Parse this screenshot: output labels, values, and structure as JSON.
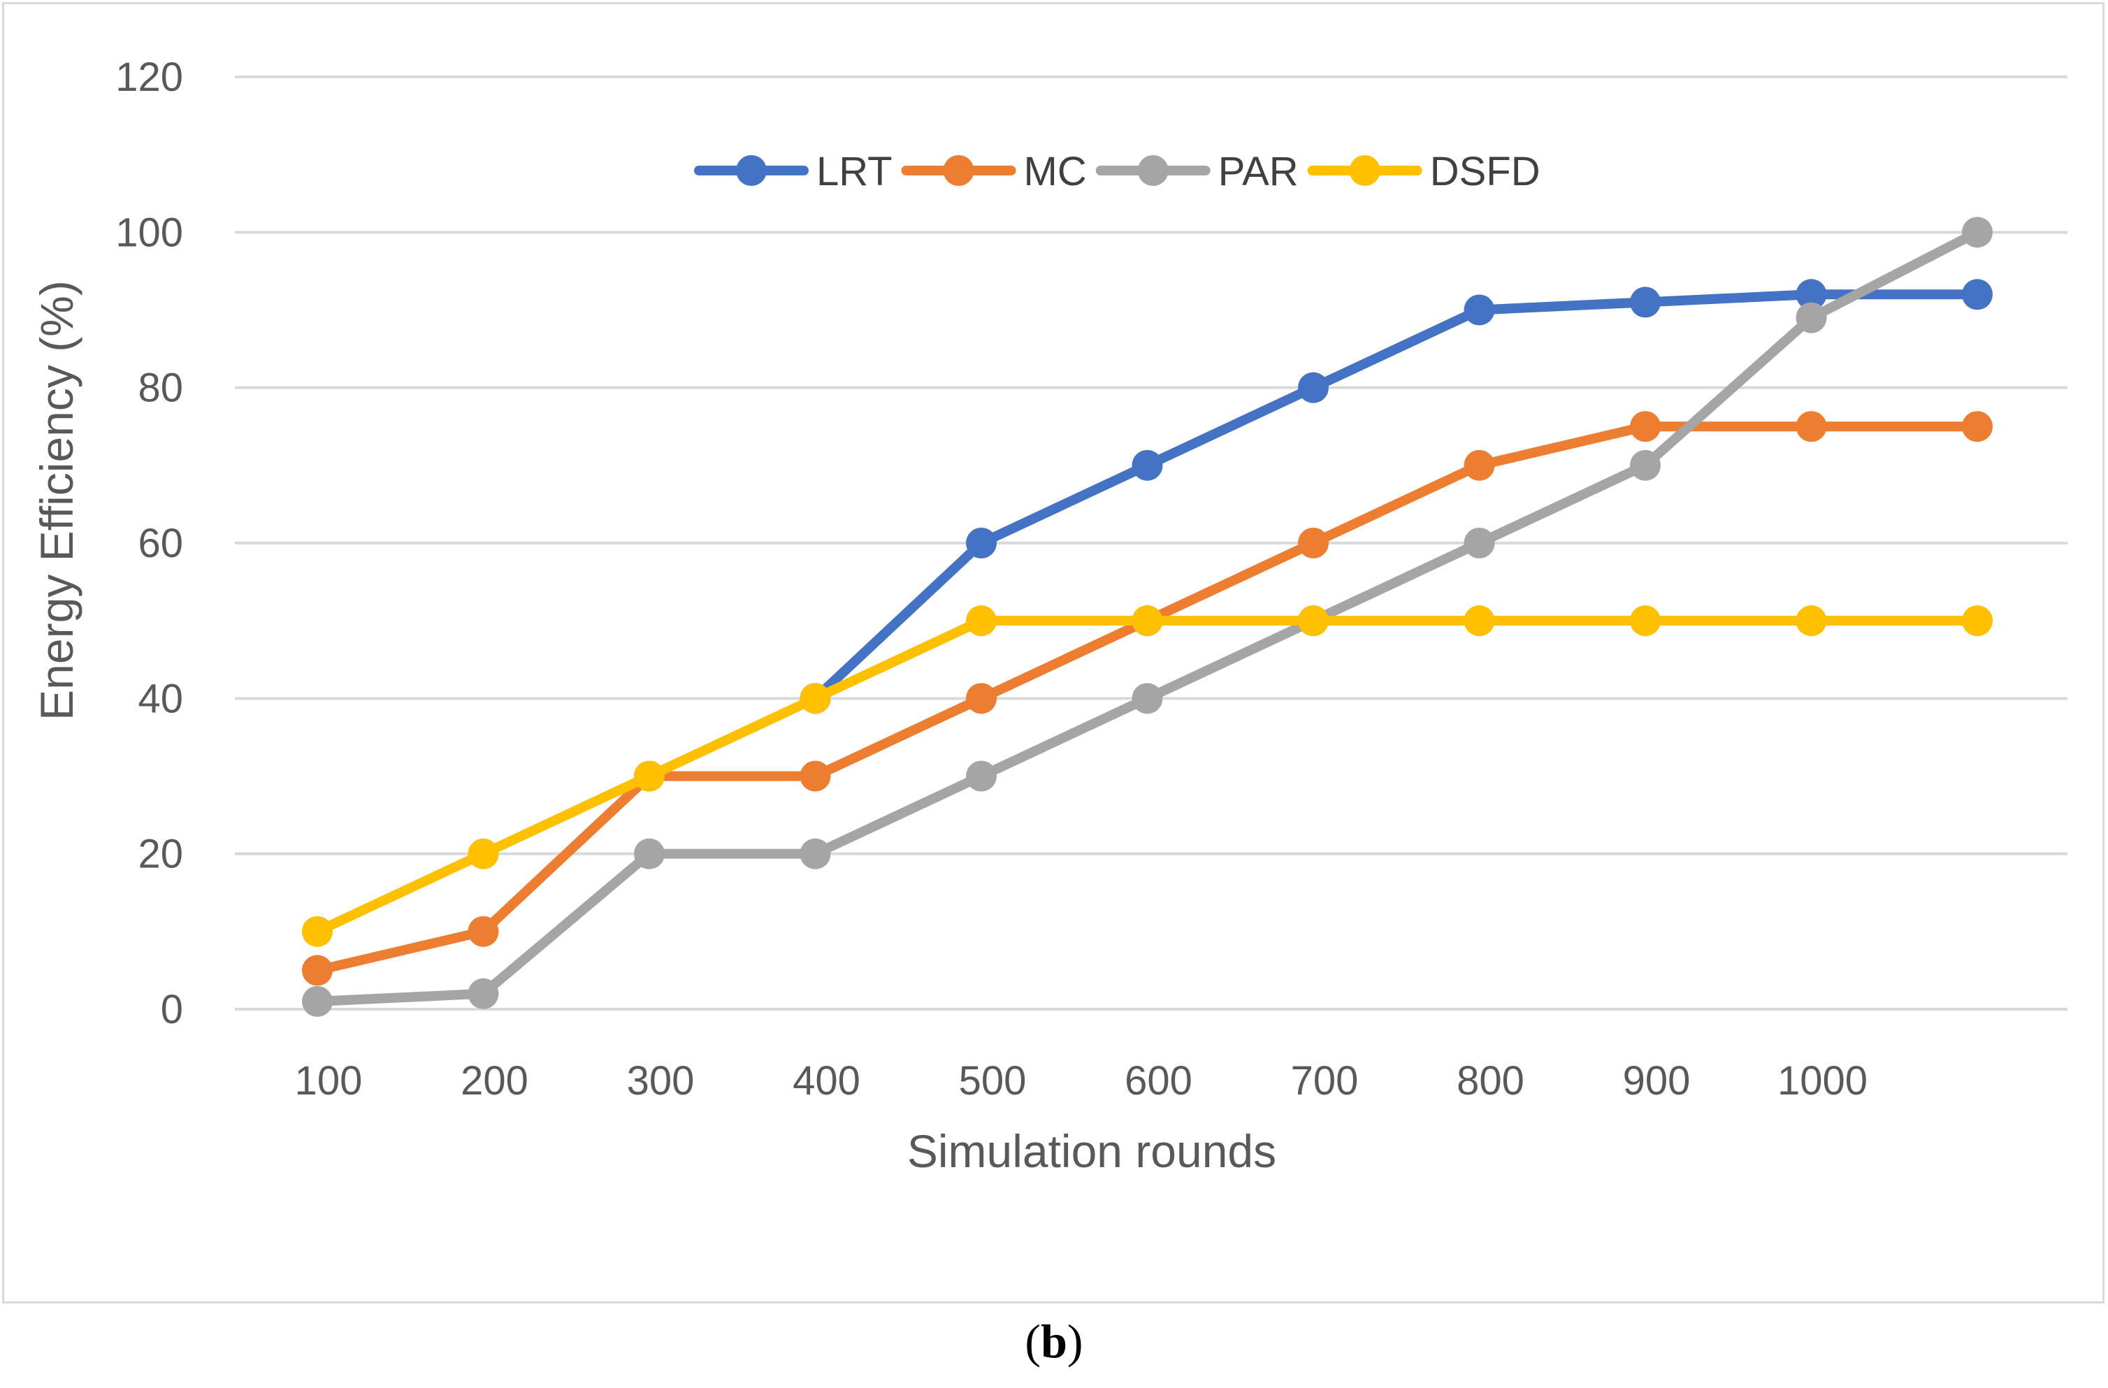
{
  "chart_data": {
    "type": "line",
    "title": "",
    "xlabel": "Simulation rounds",
    "ylabel": "Energy Efficiency (%)",
    "categories": [
      "100",
      "200",
      "300",
      "400",
      "500",
      "600",
      "700",
      "800",
      "900",
      "1000",
      ""
    ],
    "ylim": [
      0,
      120
    ],
    "yticks": [
      0,
      20,
      40,
      60,
      80,
      100,
      120
    ],
    "grid": true,
    "legend_position": "top",
    "series": [
      {
        "name": "LRT",
        "color": "#4472c4",
        "values": [
          null,
          null,
          null,
          40,
          60,
          70,
          80,
          90,
          91,
          92,
          92
        ]
      },
      {
        "name": "MC",
        "color": "#ed7d31",
        "values": [
          5,
          10,
          30,
          30,
          40,
          50,
          60,
          70,
          75,
          75,
          75
        ]
      },
      {
        "name": "PAR",
        "color": "#a5a5a5",
        "values": [
          1,
          2,
          20,
          20,
          30,
          40,
          50,
          60,
          70,
          89,
          100
        ]
      },
      {
        "name": "DSFD",
        "color": "#ffc000",
        "values": [
          10,
          20,
          30,
          40,
          50,
          50,
          50,
          50,
          50,
          50,
          50
        ]
      }
    ]
  },
  "caption": {
    "open": "(",
    "label": "b",
    "close": ")"
  }
}
